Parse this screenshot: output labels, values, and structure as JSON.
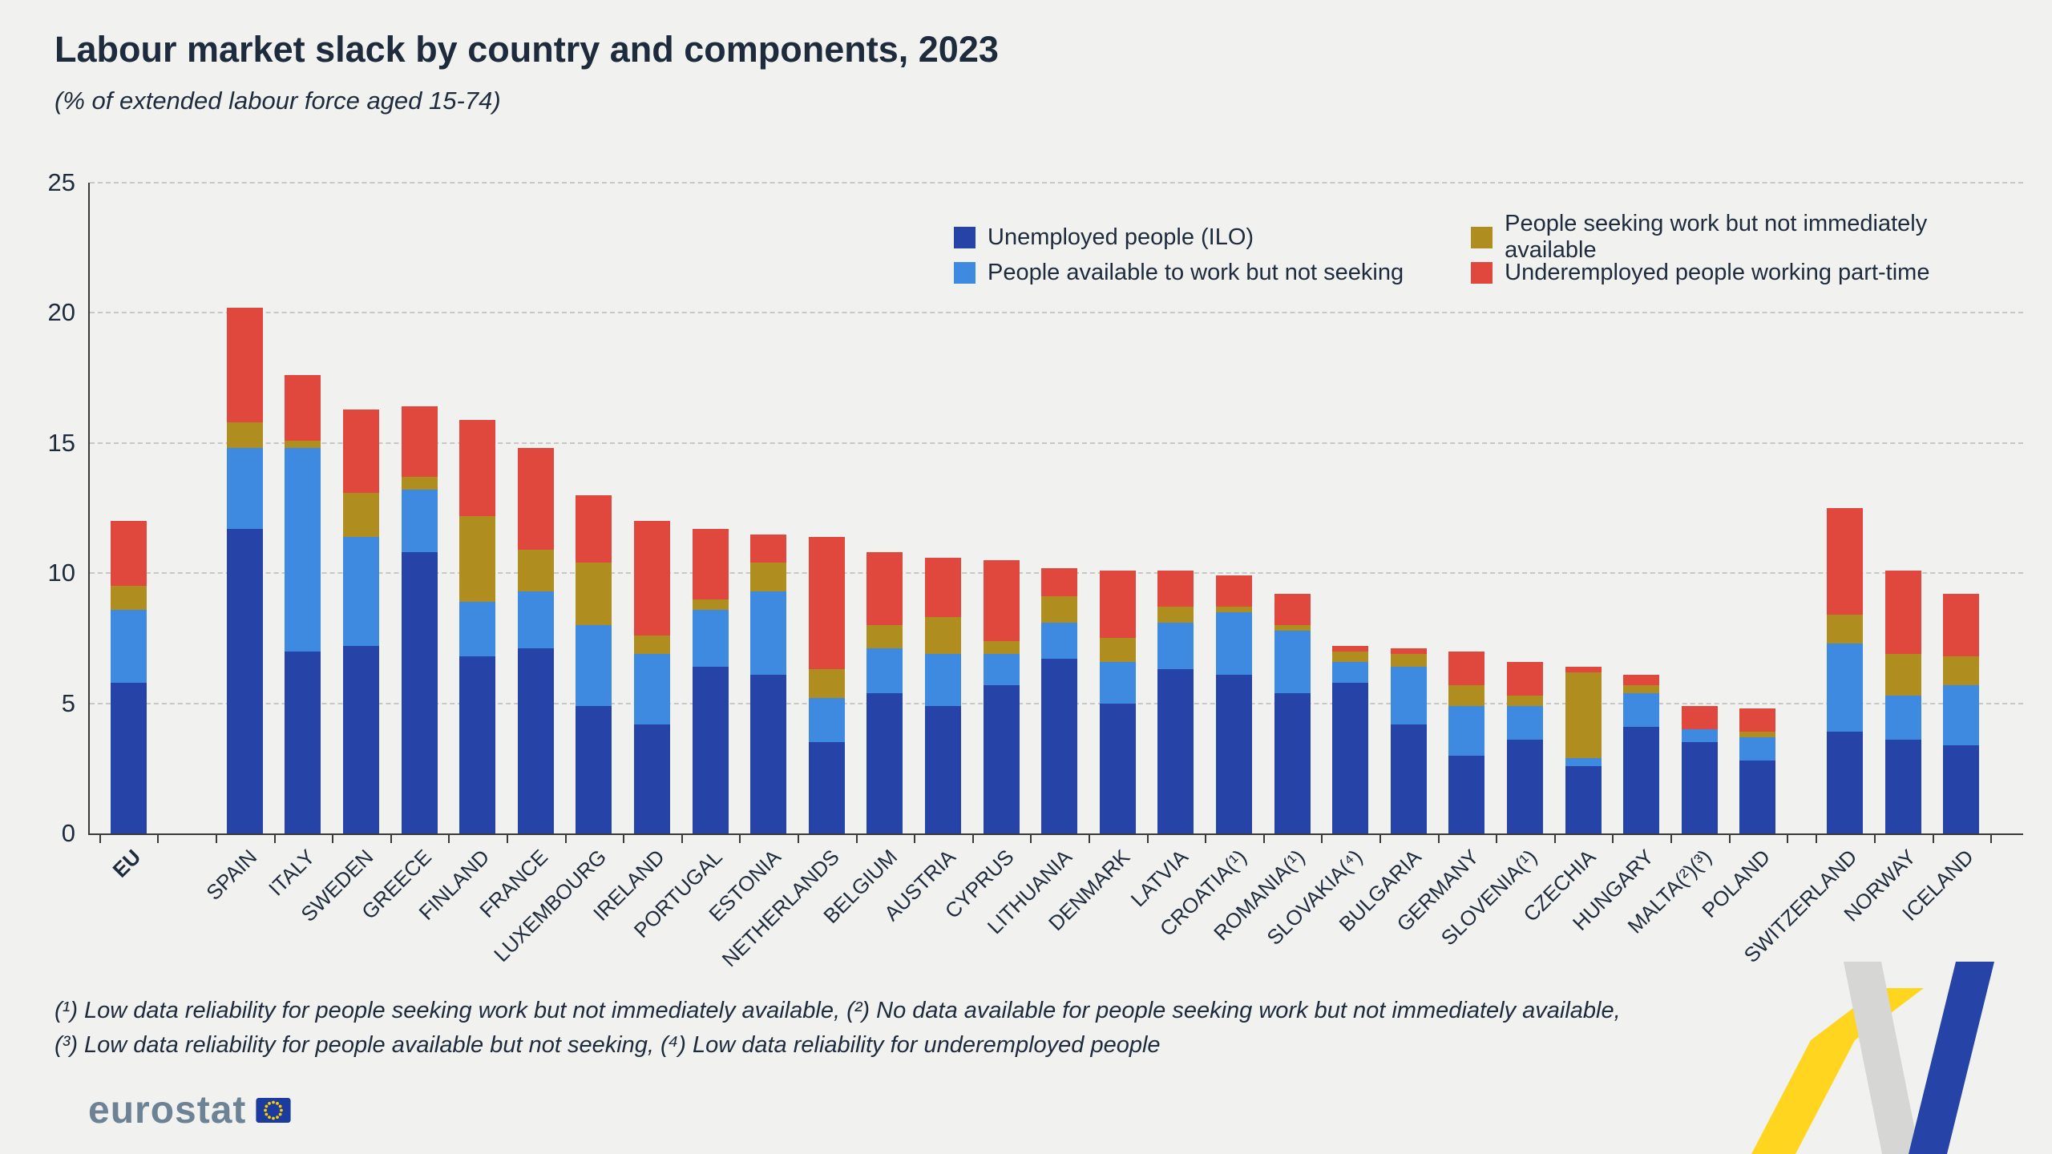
{
  "chart_data": {
    "type": "stacked-bar",
    "title": "Labour market slack by country and components, 2023",
    "subtitle": "(% of extended labour force aged 15-74)",
    "ylim": [
      0,
      25
    ],
    "yticks": [
      0,
      5,
      10,
      15,
      20,
      25
    ],
    "grid": "dashed-horizontal",
    "legend_position": "top-right-two-columns",
    "series": [
      {
        "name": "Unemployed people (ILO)",
        "color": "#2644a7"
      },
      {
        "name": "People available to work but not seeking",
        "color": "#3d8ae0"
      },
      {
        "name": "People seeking work but not immediately available",
        "color": "#af8d1e"
      },
      {
        "name": "Underemployed people working part-time",
        "color": "#e0483e"
      }
    ],
    "groups": [
      [
        {
          "label": "EU",
          "bold": true,
          "values": [
            5.8,
            2.8,
            0.9,
            2.5
          ]
        }
      ],
      [
        {
          "label": "SPAIN",
          "values": [
            11.7,
            3.1,
            1.0,
            4.4
          ]
        },
        {
          "label": "ITALY",
          "values": [
            7.0,
            7.8,
            0.3,
            2.5
          ]
        },
        {
          "label": "SWEDEN",
          "values": [
            7.2,
            4.2,
            1.7,
            3.2
          ]
        },
        {
          "label": "GREECE",
          "values": [
            10.8,
            2.4,
            0.5,
            2.7
          ]
        },
        {
          "label": "FINLAND",
          "values": [
            6.8,
            2.1,
            3.3,
            3.7
          ]
        },
        {
          "label": "FRANCE",
          "values": [
            7.1,
            2.2,
            1.6,
            3.9
          ]
        },
        {
          "label": "LUXEMBOURG",
          "values": [
            4.9,
            3.1,
            2.4,
            2.6
          ]
        },
        {
          "label": "IRELAND",
          "values": [
            4.2,
            2.7,
            0.7,
            4.4
          ]
        },
        {
          "label": "PORTUGAL",
          "values": [
            6.4,
            2.2,
            0.4,
            2.7
          ]
        },
        {
          "label": "ESTONIA",
          "values": [
            6.1,
            3.2,
            1.1,
            1.1
          ]
        },
        {
          "label": "NETHERLANDS",
          "values": [
            3.5,
            1.7,
            1.1,
            5.1
          ]
        },
        {
          "label": "BELGIUM",
          "values": [
            5.4,
            1.7,
            0.9,
            2.8
          ]
        },
        {
          "label": "AUSTRIA",
          "values": [
            4.9,
            2.0,
            1.4,
            2.3
          ]
        },
        {
          "label": "CYPRUS",
          "values": [
            5.7,
            1.2,
            0.5,
            3.1
          ]
        },
        {
          "label": "LITHUANIA",
          "values": [
            6.7,
            1.4,
            1.0,
            1.1
          ]
        },
        {
          "label": "DENMARK",
          "values": [
            5.0,
            1.6,
            0.9,
            2.6
          ]
        },
        {
          "label": "LATVIA",
          "values": [
            6.3,
            1.8,
            0.6,
            1.4
          ]
        },
        {
          "label": "CROATIA(¹)",
          "values": [
            6.1,
            2.4,
            0.2,
            1.2
          ]
        },
        {
          "label": "ROMANIA(¹)",
          "values": [
            5.4,
            2.4,
            0.2,
            1.2
          ]
        },
        {
          "label": "SLOVAKIA(⁴)",
          "values": [
            5.8,
            0.8,
            0.4,
            0.2
          ]
        },
        {
          "label": "BULGARIA",
          "values": [
            4.2,
            2.2,
            0.5,
            0.2
          ]
        },
        {
          "label": "GERMANY",
          "values": [
            3.0,
            1.9,
            0.8,
            1.3
          ]
        },
        {
          "label": "SLOVENIA(¹)",
          "values": [
            3.6,
            1.3,
            0.4,
            1.3
          ]
        },
        {
          "label": "CZECHIA",
          "values": [
            2.6,
            0.3,
            3.3,
            0.2
          ]
        },
        {
          "label": "HUNGARY",
          "values": [
            4.1,
            1.3,
            0.3,
            0.4
          ]
        },
        {
          "label": "MALTA(²)(³)",
          "values": [
            3.5,
            0.5,
            0.0,
            0.9
          ]
        },
        {
          "label": "POLAND",
          "values": [
            2.8,
            0.9,
            0.2,
            0.9
          ]
        }
      ],
      [
        {
          "label": "SWITZERLAND",
          "values": [
            3.9,
            3.4,
            1.1,
            4.1
          ]
        },
        {
          "label": "NORWAY",
          "values": [
            3.6,
            1.7,
            1.6,
            3.2
          ]
        },
        {
          "label": "ICELAND",
          "values": [
            3.4,
            2.3,
            1.1,
            2.4
          ]
        }
      ]
    ]
  },
  "footnotes": {
    "line1": "(¹) Low data reliability for people seeking work but not immediately available, (²) No data available for people seeking work but not immediately available,",
    "line2": "(³) Low data reliability for people available but not seeking, (⁴) Low data reliability for underemployed people"
  },
  "branding": {
    "logo_text": "eurostat"
  }
}
